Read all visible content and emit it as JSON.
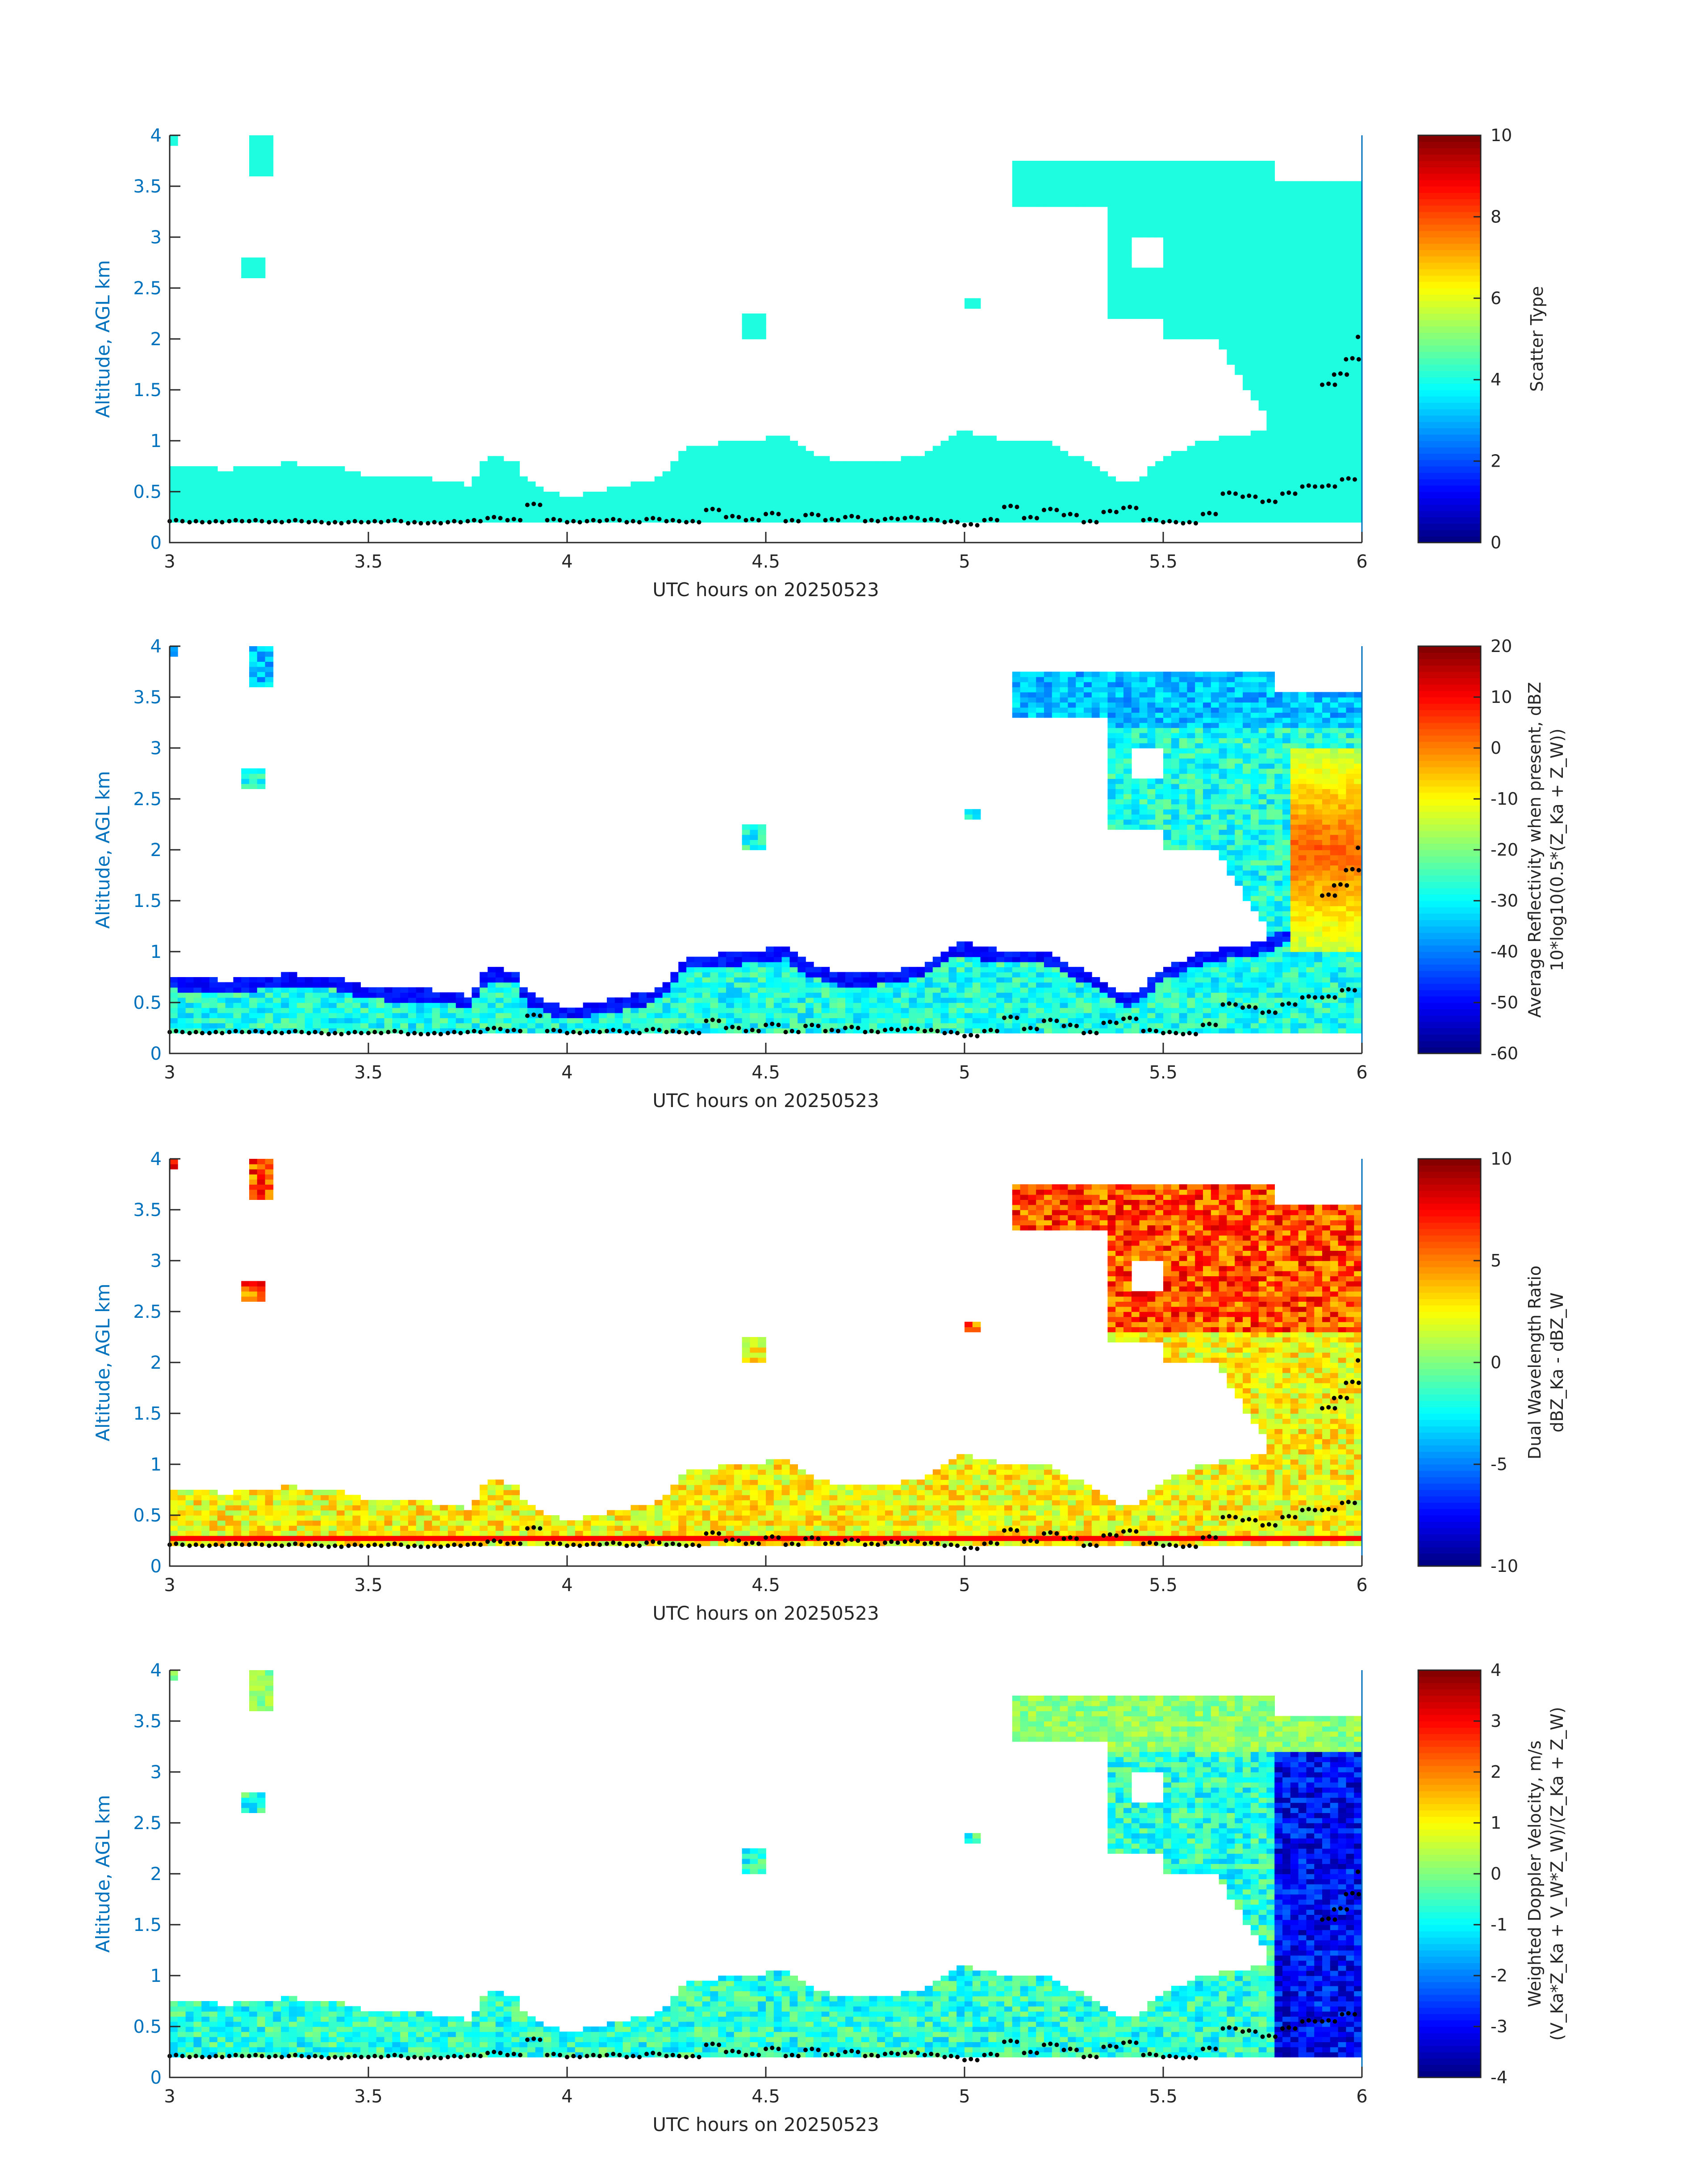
{
  "chart_data": [
    {
      "type": "heatmap",
      "title": "",
      "xlabel": "UTC hours on 20250523",
      "ylabel": "Altitude, AGL km",
      "xlim": [
        3,
        6
      ],
      "ylim": [
        0,
        4
      ],
      "xticks": [
        "3",
        "3.5",
        "4",
        "4.5",
        "5",
        "5.5",
        "6"
      ],
      "yticks": [
        "0",
        "0.5",
        "1",
        "1.5",
        "2",
        "2.5",
        "3",
        "3.5",
        "4"
      ],
      "colorbar": {
        "label_lines": [
          "Scatter Type"
        ],
        "ticks": [
          "0",
          "2",
          "4",
          "6",
          "8",
          "10"
        ],
        "range": [
          0,
          10
        ]
      },
      "fill_value": 3.7,
      "fill_color": "#1ffde0"
    },
    {
      "type": "heatmap",
      "title": "",
      "xlabel": "UTC hours on 20250523",
      "ylabel": "Altitude, AGL km",
      "xlim": [
        3,
        6
      ],
      "ylim": [
        0,
        4
      ],
      "xticks": [
        "3",
        "3.5",
        "4",
        "4.5",
        "5",
        "5.5",
        "6"
      ],
      "yticks": [
        "0",
        "0.5",
        "1",
        "1.5",
        "2",
        "2.5",
        "3",
        "3.5",
        "4"
      ],
      "colorbar": {
        "label_lines": [
          "Average Reflectivity when present, dBZ",
          "10*log10(0.5*(Z_Ka + Z_W))"
        ],
        "ticks": [
          "-60",
          "-50",
          "-40",
          "-30",
          "-20",
          "-10",
          "0",
          "10",
          "20"
        ],
        "range": [
          -60,
          20
        ]
      }
    },
    {
      "type": "heatmap",
      "title": "",
      "xlabel": "UTC hours on 20250523",
      "ylabel": "Altitude, AGL km",
      "xlim": [
        3,
        6
      ],
      "ylim": [
        0,
        4
      ],
      "xticks": [
        "3",
        "3.5",
        "4",
        "4.5",
        "5",
        "5.5",
        "6"
      ],
      "yticks": [
        "0",
        "0.5",
        "1",
        "1.5",
        "2",
        "2.5",
        "3",
        "3.5",
        "4"
      ],
      "colorbar": {
        "label_lines": [
          "Dual Wavelength Ratio",
          "dBZ_Ka - dBZ_W"
        ],
        "ticks": [
          "-10",
          "-5",
          "0",
          "5",
          "10"
        ],
        "range": [
          -10,
          10
        ]
      }
    },
    {
      "type": "heatmap",
      "title": "",
      "xlabel": "UTC hours on 20250523",
      "ylabel": "Altitude, AGL km",
      "xlim": [
        3,
        6
      ],
      "ylim": [
        0,
        4
      ],
      "xticks": [
        "3",
        "3.5",
        "4",
        "4.5",
        "5",
        "5.5",
        "6"
      ],
      "yticks": [
        "0",
        "0.5",
        "1",
        "1.5",
        "2",
        "2.5",
        "3",
        "3.5",
        "4"
      ],
      "colorbar": {
        "label_lines": [
          "Weighted Doppler Velocity, m/s",
          "(V_Ka*Z_Ka + V_W*Z_W)/(Z_Ka + Z_W)"
        ],
        "ticks": [
          "-4",
          "-3",
          "-2",
          "-1",
          "0",
          "1",
          "2",
          "3",
          "4"
        ],
        "range": [
          -4,
          4
        ]
      }
    }
  ],
  "cloud_base_dots": {
    "x": [
      3.0,
      3.05,
      3.1,
      3.15,
      3.2,
      3.25,
      3.3,
      3.35,
      3.4,
      3.45,
      3.5,
      3.55,
      3.6,
      3.65,
      3.7,
      3.75,
      3.8,
      3.85,
      3.9,
      3.95,
      4.0,
      4.05,
      4.1,
      4.15,
      4.2,
      4.25,
      4.3,
      4.35,
      4.4,
      4.45,
      4.5,
      4.55,
      4.6,
      4.65,
      4.7,
      4.75,
      4.8,
      4.85,
      4.9,
      4.95,
      5.0,
      5.05,
      5.1,
      5.15,
      5.2,
      5.25,
      5.3,
      5.35,
      5.4,
      5.45,
      5.5,
      5.55,
      5.6,
      5.65,
      5.7,
      5.75,
      5.8,
      5.85,
      5.9,
      5.95
    ],
    "y": [
      0.21,
      0.2,
      0.2,
      0.21,
      0.21,
      0.2,
      0.21,
      0.2,
      0.19,
      0.2,
      0.2,
      0.21,
      0.19,
      0.19,
      0.2,
      0.21,
      0.24,
      0.22,
      0.37,
      0.22,
      0.2,
      0.21,
      0.22,
      0.2,
      0.23,
      0.21,
      0.2,
      0.32,
      0.25,
      0.22,
      0.28,
      0.21,
      0.27,
      0.22,
      0.25,
      0.21,
      0.23,
      0.24,
      0.22,
      0.2,
      0.17,
      0.22,
      0.35,
      0.24,
      0.32,
      0.27,
      0.2,
      0.3,
      0.34,
      0.22,
      0.2,
      0.19,
      0.28,
      0.48,
      0.45,
      0.4,
      0.48,
      0.55,
      0.55,
      0.62
    ],
    "tail_x": [
      5.9,
      5.93,
      5.96,
      5.99
    ],
    "tail_y": [
      1.55,
      1.65,
      1.8,
      2.02
    ]
  }
}
